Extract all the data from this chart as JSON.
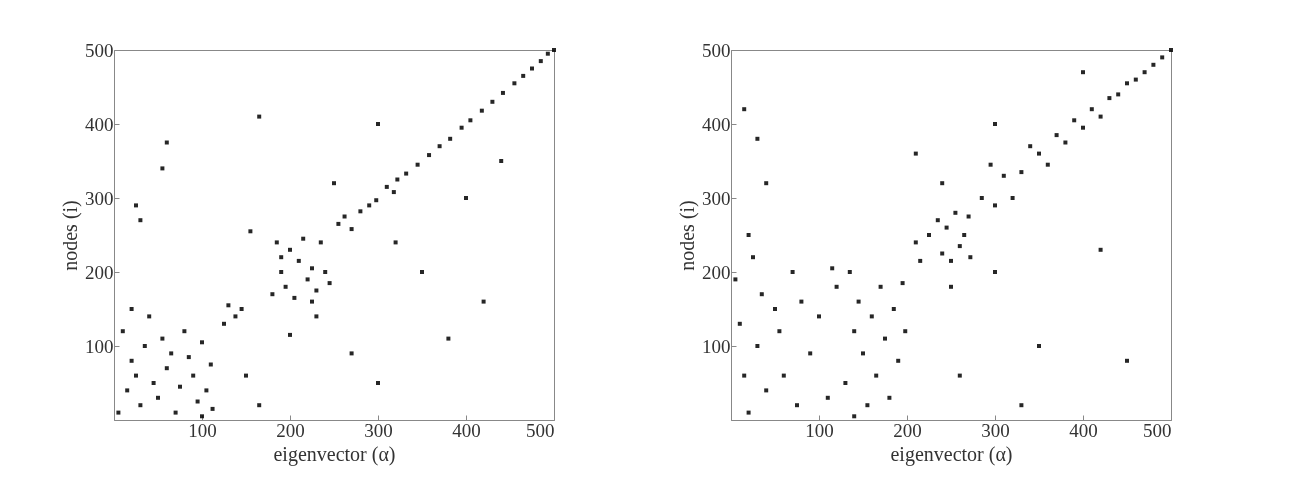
{
  "chart_data": [
    {
      "type": "scatter",
      "xlabel": "eigenvector (α)",
      "ylabel": "nodes (i)",
      "xlim": [
        0,
        500
      ],
      "ylim": [
        0,
        500
      ],
      "xticks": [
        100,
        200,
        300,
        400,
        500
      ],
      "yticks": [
        100,
        200,
        300,
        400,
        500
      ],
      "marker": "square",
      "series": [
        {
          "color": "#000000",
          "x": [
            5,
            10,
            15,
            20,
            25,
            30,
            35,
            40,
            45,
            50,
            55,
            60,
            65,
            70,
            75,
            80,
            85,
            90,
            95,
            100,
            105,
            110,
            112,
            100,
            20,
            125,
            130,
            138,
            145,
            180,
            185,
            190,
            195,
            200,
            205,
            210,
            215,
            220,
            225,
            230,
            235,
            240,
            245,
            190,
            225,
            255,
            262,
            270,
            280,
            290,
            298,
            310,
            318,
            322,
            332,
            345,
            358,
            370,
            382,
            395,
            405,
            418,
            430,
            442,
            455,
            465,
            475,
            485,
            493,
            500,
            55,
            60,
            30,
            25,
            165,
            155,
            300,
            350,
            400,
            440,
            230,
            200,
            270,
            300,
            420,
            380,
            150,
            165,
            250,
            320
          ],
          "values": [
            10,
            120,
            40,
            80,
            60,
            20,
            100,
            140,
            50,
            30,
            110,
            70,
            90,
            10,
            45,
            120,
            85,
            60,
            25,
            105,
            40,
            75,
            15,
            5,
            150,
            130,
            155,
            140,
            150,
            170,
            240,
            200,
            180,
            230,
            165,
            215,
            245,
            190,
            205,
            175,
            240,
            200,
            185,
            220,
            160,
            265,
            275,
            258,
            282,
            290,
            297,
            315,
            308,
            325,
            333,
            345,
            358,
            370,
            380,
            395,
            405,
            418,
            430,
            442,
            455,
            465,
            475,
            485,
            495,
            500,
            340,
            375,
            270,
            290,
            410,
            255,
            400,
            200,
            300,
            350,
            140,
            115,
            90,
            50,
            160,
            110,
            60,
            20,
            320,
            240
          ]
        }
      ]
    },
    {
      "type": "scatter",
      "xlabel": "eigenvector (α)",
      "ylabel": "nodes (i)",
      "xlim": [
        0,
        500
      ],
      "ylim": [
        0,
        500
      ],
      "xticks": [
        100,
        200,
        300,
        400,
        500
      ],
      "yticks": [
        100,
        200,
        300,
        400,
        500
      ],
      "marker": "square",
      "series": [
        {
          "color": "#000000",
          "x": [
            5,
            10,
            15,
            20,
            25,
            30,
            35,
            40,
            50,
            55,
            60,
            70,
            75,
            80,
            90,
            100,
            110,
            115,
            120,
            130,
            135,
            140,
            145,
            150,
            155,
            160,
            165,
            170,
            175,
            180,
            185,
            190,
            195,
            198,
            140,
            210,
            215,
            225,
            235,
            240,
            245,
            250,
            255,
            260,
            265,
            270,
            272,
            285,
            295,
            300,
            310,
            320,
            330,
            340,
            350,
            360,
            370,
            380,
            390,
            400,
            410,
            420,
            430,
            440,
            450,
            460,
            470,
            480,
            490,
            500,
            15,
            30,
            40,
            210,
            240,
            300,
            250,
            260,
            350,
            420,
            450,
            330,
            400,
            300,
            20
          ],
          "values": [
            190,
            130,
            60,
            10,
            220,
            100,
            170,
            40,
            150,
            120,
            60,
            200,
            20,
            160,
            90,
            140,
            30,
            205,
            180,
            50,
            200,
            120,
            160,
            90,
            20,
            140,
            60,
            180,
            110,
            30,
            150,
            80,
            185,
            120,
            5,
            240,
            215,
            250,
            270,
            225,
            260,
            215,
            280,
            235,
            250,
            275,
            220,
            300,
            345,
            290,
            330,
            300,
            335,
            370,
            360,
            345,
            385,
            375,
            405,
            395,
            420,
            410,
            435,
            440,
            455,
            460,
            470,
            480,
            490,
            500,
            420,
            380,
            320,
            360,
            320,
            200,
            180,
            60,
            100,
            230,
            80,
            20,
            470,
            400,
            250
          ]
        }
      ]
    }
  ]
}
